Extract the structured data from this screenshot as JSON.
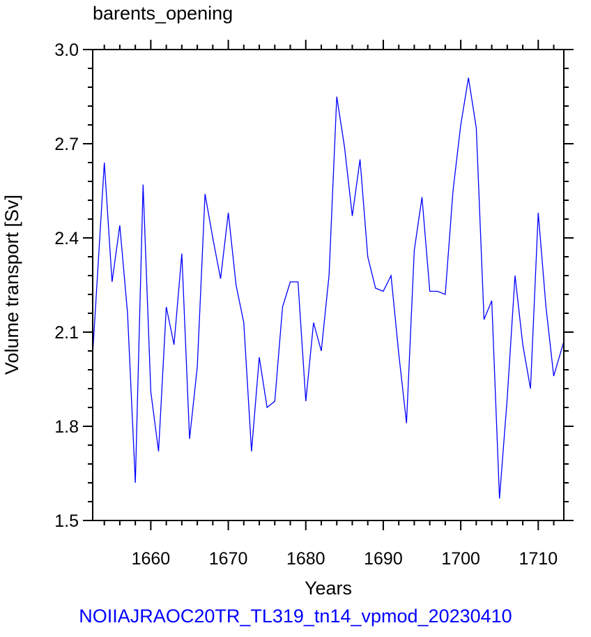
{
  "chart_data": {
    "type": "line",
    "title": "barents_opening",
    "xlabel": "Years",
    "ylabel": "Volume transport [Sv]",
    "xlim": [
      1652.5,
      1713.3
    ],
    "ylim": [
      1.5,
      3.0
    ],
    "xticks": [
      "1660",
      "1670",
      "1680",
      "1690",
      "1700",
      "1710"
    ],
    "yticks": [
      "1.5",
      "1.8",
      "2.1",
      "2.4",
      "2.7",
      "3.0"
    ],
    "grid": false,
    "series": [
      {
        "color": "#0000ff",
        "x": [
          1652.5,
          1654,
          1655,
          1656,
          1657,
          1658,
          1659,
          1660,
          1661,
          1662,
          1663,
          1664,
          1665,
          1666,
          1667,
          1668,
          1669,
          1670,
          1671,
          1672,
          1673,
          1674,
          1675,
          1676,
          1677,
          1678,
          1679,
          1680,
          1681,
          1682,
          1683,
          1684,
          1685,
          1686,
          1687,
          1688,
          1689,
          1690,
          1691,
          1692,
          1693,
          1694,
          1695,
          1696,
          1697,
          1698,
          1699,
          1700,
          1701,
          1702,
          1703,
          1704,
          1705,
          1706,
          1707,
          1708,
          1709,
          1710,
          1711,
          1712,
          1713.3
        ],
        "y": [
          2.03,
          2.64,
          2.26,
          2.44,
          2.16,
          1.62,
          2.57,
          1.91,
          1.72,
          2.18,
          2.06,
          2.35,
          1.76,
          1.99,
          2.54,
          2.4,
          2.27,
          2.48,
          2.25,
          2.13,
          1.72,
          2.02,
          1.86,
          1.88,
          2.18,
          2.26,
          2.26,
          1.88,
          2.13,
          2.04,
          2.28,
          2.85,
          2.69,
          2.47,
          2.65,
          2.34,
          2.24,
          2.23,
          2.28,
          2.03,
          1.81,
          2.36,
          2.53,
          2.23,
          2.23,
          2.22,
          2.55,
          2.76,
          2.91,
          2.75,
          2.14,
          2.2,
          1.57,
          1.89,
          2.28,
          2.06,
          1.92,
          2.48,
          2.18,
          1.96,
          2.07
        ]
      }
    ]
  },
  "footer": "NOIIAJRAOC20TR_TL319_tn14_vpmod_20230410",
  "colors": {
    "line": "#0000ff",
    "footer": "#0000ff"
  }
}
